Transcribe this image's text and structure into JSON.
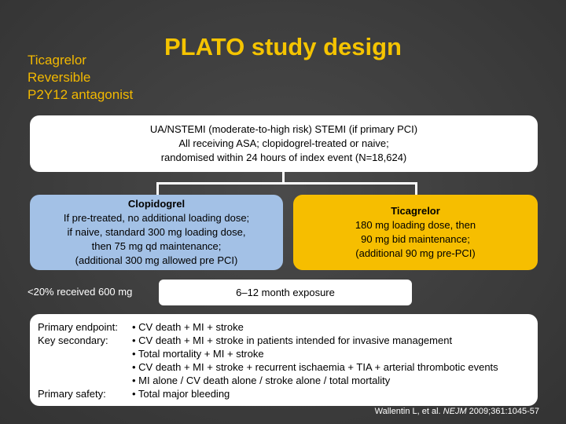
{
  "title": "PLATO study design",
  "drug_note": [
    "Ticagrelor",
    "Reversible",
    "P2Y12 antagonist"
  ],
  "inclusion": [
    "UA/NSTEMI (moderate-to-high risk) STEMI (if primary PCI)",
    "All receiving ASA; clopidogrel-treated or naive;",
    "randomised within 24 hours of index event (N=18,624)"
  ],
  "clopidogrel": {
    "name": "Clopidogrel",
    "lines": [
      "If pre-treated, no additional loading dose;",
      "if naive, standard 300 mg loading dose,",
      "then 75 mg qd maintenance;",
      "(additional 300 mg allowed pre PCI)"
    ]
  },
  "ticagrelor": {
    "name": "Ticagrelor",
    "lines": [
      "180 mg loading dose, then",
      "90 mg bid maintenance;",
      "(additional 90 mg pre-PCI)"
    ]
  },
  "note_600": "<20% received 600 mg",
  "exposure": "6–12 month exposure",
  "endpoints": [
    {
      "label": "Primary endpoint:",
      "item": "• CV death + MI + stroke"
    },
    {
      "label": "Key secondary:",
      "item": "• CV death + MI + stroke  in patients intended for invasive management"
    },
    {
      "label": "",
      "item": "• Total mortality + MI + stroke"
    },
    {
      "label": "",
      "item": "• CV death + MI + stroke + recurrent ischaemia + TIA + arterial thrombotic events"
    },
    {
      "label": "",
      "item": "• MI alone / CV death alone / stroke alone / total mortality"
    },
    {
      "label": "Primary safety:",
      "item": "• Total major bleeding"
    }
  ],
  "citation": {
    "authors": "Wallentin L, et al. ",
    "journal": "NEJM",
    "ref": " 2009;361:1045-57"
  },
  "colors": {
    "title": "#f5c400",
    "clopidogrel_box": "#a3c1e6",
    "ticagrelor_box": "#f6be00",
    "background": "#3f3f3f"
  }
}
